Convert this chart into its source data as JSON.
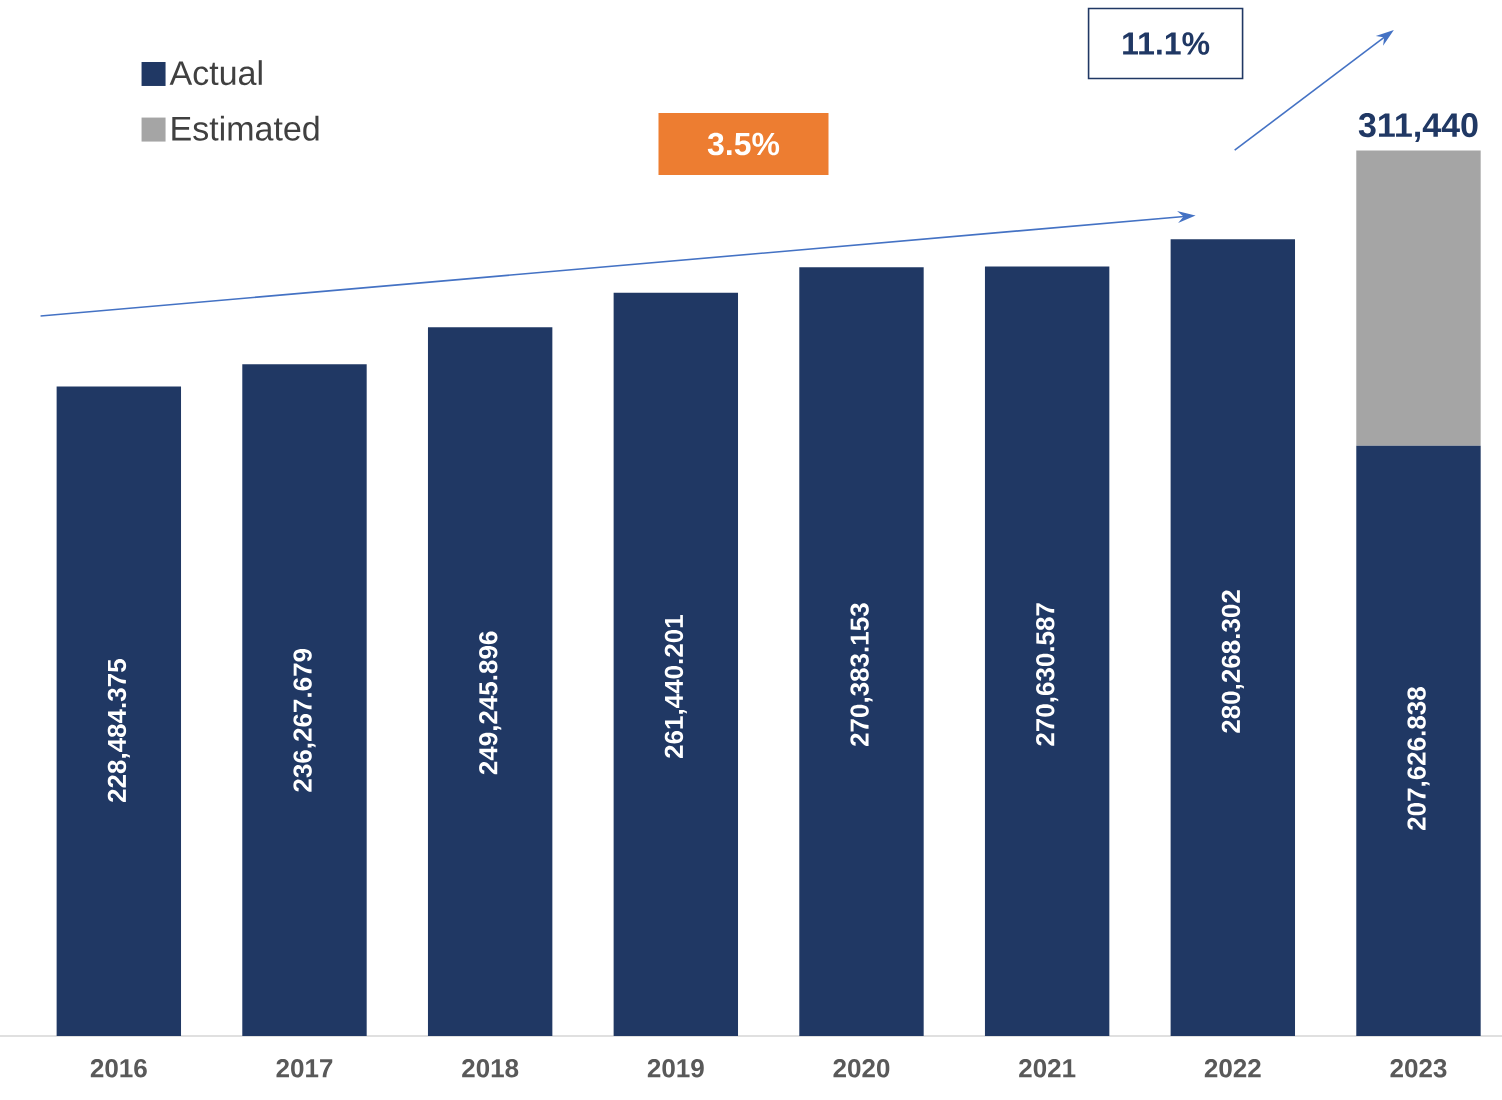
{
  "chart_data": {
    "type": "bar",
    "stacked": true,
    "categories": [
      "2016",
      "2017",
      "2018",
      "2019",
      "2020",
      "2021",
      "2022",
      "2023"
    ],
    "series": [
      {
        "name": "Actual",
        "color": "#203864",
        "values": [
          228484.375,
          236267.679,
          249245.896,
          261440.201,
          270383.153,
          270630.587,
          280268.302,
          207626.838
        ],
        "value_labels": [
          "228,484.375",
          "236,267.679",
          "249,245.896",
          "261,440.201",
          "270,383.153",
          "270,630.587",
          "280,268.302",
          "207,626.838"
        ]
      },
      {
        "name": "Estimated",
        "color": "#a5a5a5",
        "values": [
          null,
          null,
          null,
          null,
          null,
          null,
          null,
          103813.162
        ]
      }
    ],
    "totals": [
      null,
      null,
      null,
      null,
      null,
      null,
      null,
      "311,440"
    ],
    "legend": "top left",
    "annotations": [
      "3.5%",
      "11.1%"
    ]
  }
}
